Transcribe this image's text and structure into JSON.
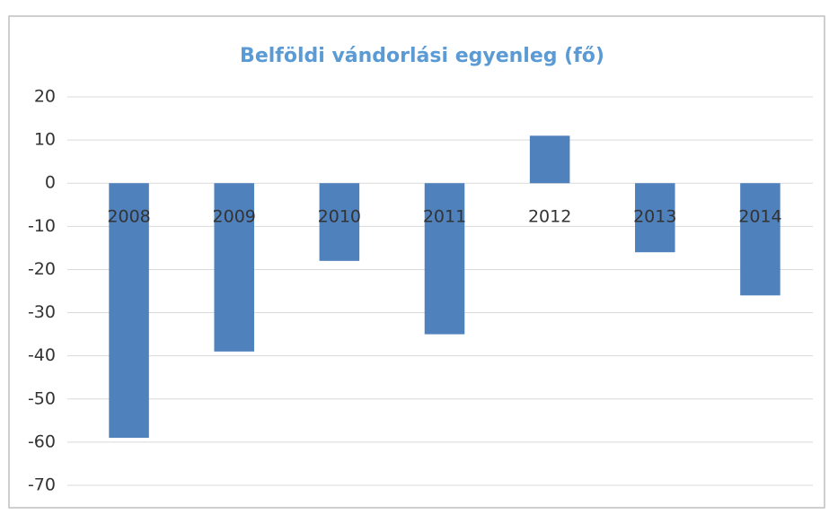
{
  "chart_data": {
    "type": "bar",
    "title": "Belföldi vándorlási egyenleg (fő)",
    "categories": [
      "2008",
      "2009",
      "2010",
      "2011",
      "2012",
      "2013",
      "2014"
    ],
    "values": [
      -59,
      -39,
      -18,
      -35,
      11,
      -16,
      -26
    ],
    "color": "#4f81bd",
    "ylim": [
      -70,
      20
    ],
    "yticks": [
      -70,
      -60,
      -50,
      -40,
      -30,
      -20,
      -10,
      0,
      10,
      20
    ],
    "grid": true
  }
}
